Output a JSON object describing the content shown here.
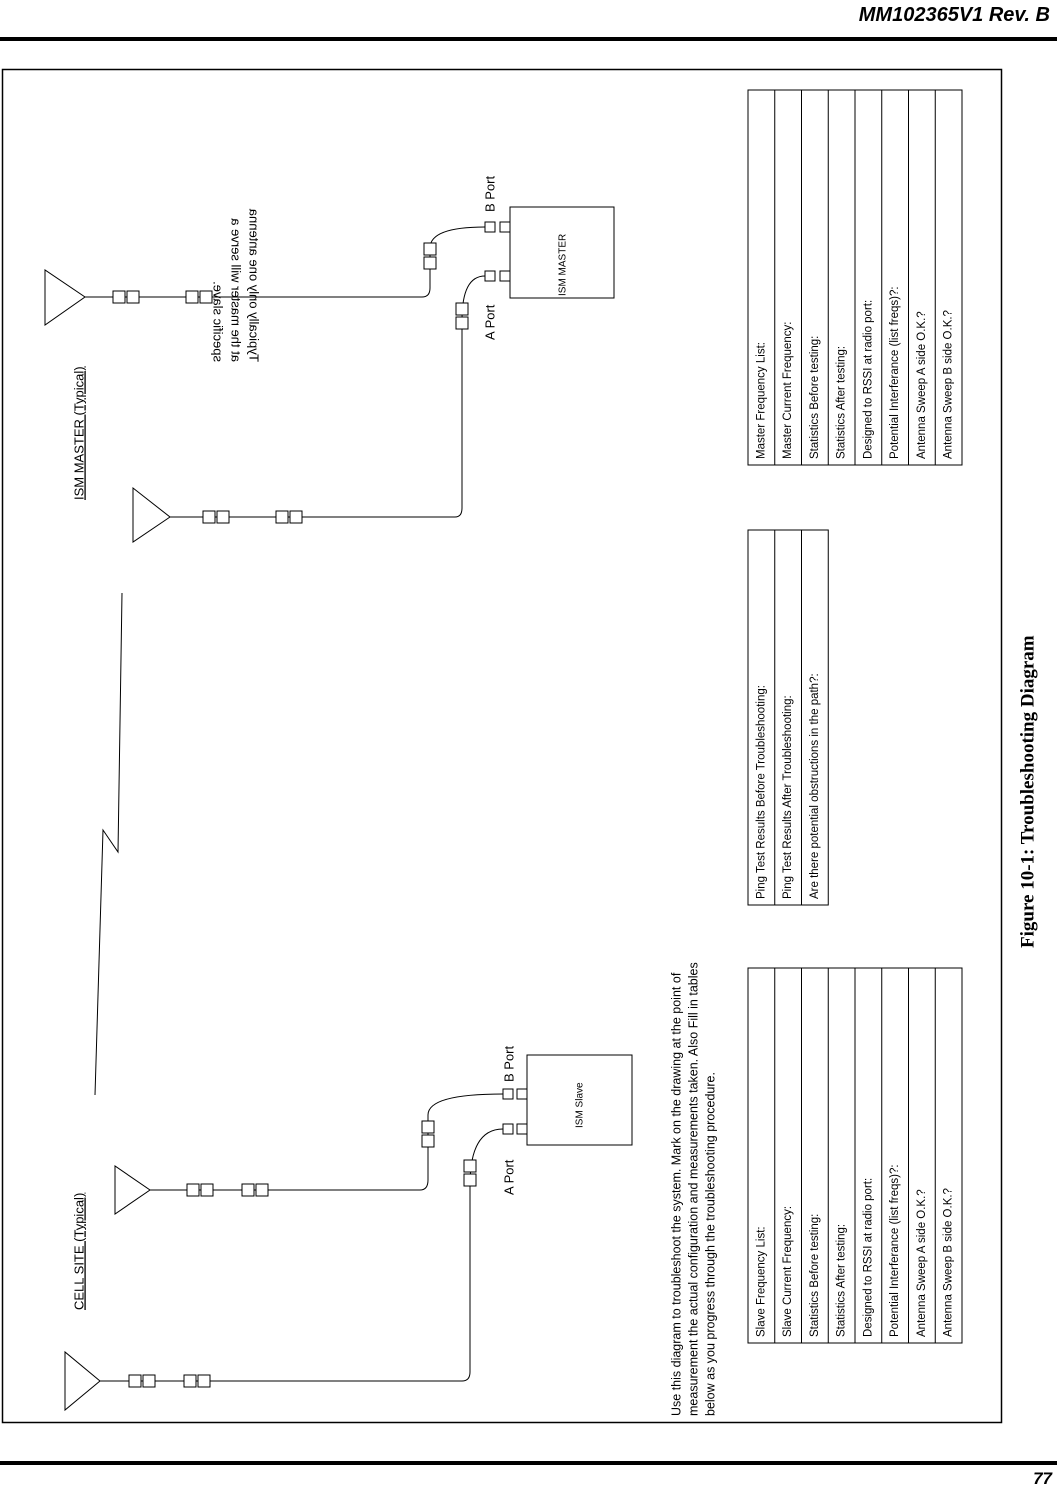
{
  "header": {
    "doc_id": "MM102365V1 Rev. B"
  },
  "diagram": {
    "cell_site_label": "CELL SITE (Typical)",
    "master_site_label": "ISM MASTER (Typical)",
    "slave_box": "ISM Slave",
    "master_box": "ISM MASTER",
    "slave_ports": [
      "A Port",
      "B Port"
    ],
    "master_ports": [
      "A Port",
      "B Port"
    ],
    "note": [
      "Typically only one antenna",
      "at the master will serve a",
      "specific slave."
    ],
    "instructions": [
      "Use this diagram to troubleshoot the system.  Mark on the drawing at the point of",
      "measurement the actual configuration and measurements taken.  Also Fill in tables",
      "below as you progress through the troubleshooting procedure."
    ]
  },
  "tables": {
    "slave": [
      "Slave Frequency List:",
      "Slave Current Frequency:",
      "Statistics Before testing:",
      "Statistics After testing:",
      "Designed to RSSI at radio port:",
      "Potential Interferance (list freqs)?:",
      "Antenna Sweep A side O.K.?",
      "Antenna Sweep B side O.K.?"
    ],
    "ping": [
      "Ping Test Results Before Troubleshooting:",
      "Ping Test Results After Troubleshooting:",
      "Are there potential obstructions in the path?:"
    ],
    "master": [
      "Master Frequency List:",
      "Master Current Frequency:",
      "Statistics Before testing:",
      "Statistics After testing:",
      "Designed to RSSI at radio port:",
      "Potential Interferance (list freqs)?:",
      "Antenna Sweep A side O.K.?",
      "Antenna Sweep B side O.K.?"
    ]
  },
  "caption": "Figure 10-1:  Troubleshooting Diagram",
  "page_number": "77"
}
